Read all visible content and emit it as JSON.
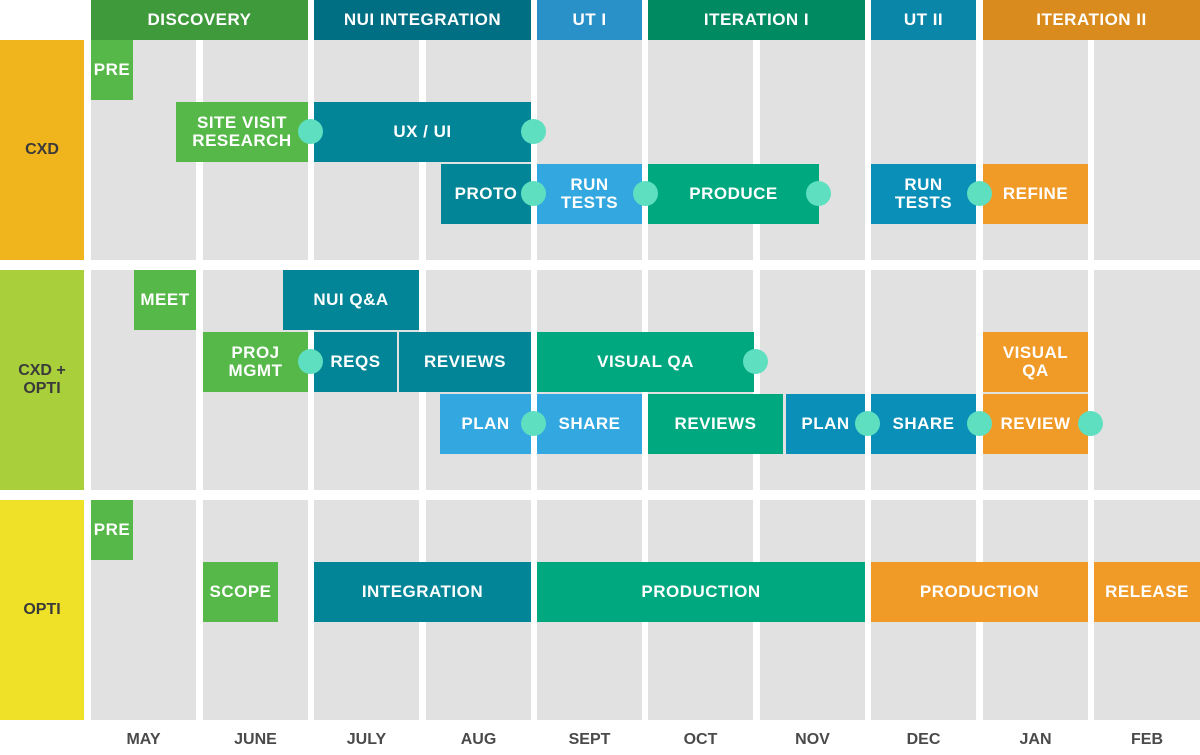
{
  "phases": [
    {
      "label": "DISCOVERY",
      "color": "#3f9a3c"
    },
    {
      "label": "NUI INTEGRATION",
      "color": "#006f83"
    },
    {
      "label": "UT I",
      "color": "#2a90c8"
    },
    {
      "label": "ITERATION I",
      "color": "#008a62"
    },
    {
      "label": "UT II",
      "color": "#0a86a8"
    },
    {
      "label": "ITERATION II",
      "color": "#d98c1d"
    }
  ],
  "lanes": [
    {
      "label": "CXD",
      "color": "#f0b41c"
    },
    {
      "label": "CXD +\nOPTI",
      "color": "#a9cf3a"
    },
    {
      "label": "OPTI",
      "color": "#eee128"
    }
  ],
  "months": [
    "MAY",
    "JUNE",
    "JULY",
    "AUG",
    "SEPT",
    "OCT",
    "NOV",
    "DEC",
    "JAN",
    "FEB"
  ],
  "tasks": [
    {
      "label": "PRE",
      "color": "#56b849"
    },
    {
      "label": "SITE VISIT\nRESEARCH",
      "color": "#56b849"
    },
    {
      "label": "UX / UI",
      "color": "#028596"
    },
    {
      "label": "PROTO",
      "color": "#028596"
    },
    {
      "label": "RUN\nTESTS",
      "color": "#33a8e0"
    },
    {
      "label": "PRODUCE",
      "color": "#00a880"
    },
    {
      "label": "RUN\nTESTS",
      "color": "#0a8fb8"
    },
    {
      "label": "REFINE",
      "color": "#f09a28"
    },
    {
      "label": "MEET",
      "color": "#56b849"
    },
    {
      "label": "NUI Q&A",
      "color": "#028596"
    },
    {
      "label": "PROJ\nMGMT",
      "color": "#56b849"
    },
    {
      "label": "REQS",
      "color": "#028596"
    },
    {
      "label": "REVIEWS",
      "color": "#028596"
    },
    {
      "label": "VISUAL QA",
      "color": "#00a880"
    },
    {
      "label": "VISUAL\nQA",
      "color": "#f09a28"
    },
    {
      "label": "PLAN",
      "color": "#33a8e0"
    },
    {
      "label": "SHARE",
      "color": "#33a8e0"
    },
    {
      "label": "REVIEWS",
      "color": "#00a880"
    },
    {
      "label": "PLAN",
      "color": "#0a8fb8"
    },
    {
      "label": "SHARE",
      "color": "#0a8fb8"
    },
    {
      "label": "REVIEW",
      "color": "#f09a28"
    },
    {
      "label": "PRE",
      "color": "#56b849"
    },
    {
      "label": "SCOPE",
      "color": "#56b849"
    },
    {
      "label": "INTEGRATION",
      "color": "#028596"
    },
    {
      "label": "PRODUCTION",
      "color": "#00a880"
    },
    {
      "label": "PRODUCTION",
      "color": "#f09a28"
    },
    {
      "label": "RELEASE",
      "color": "#f09a28"
    }
  ]
}
